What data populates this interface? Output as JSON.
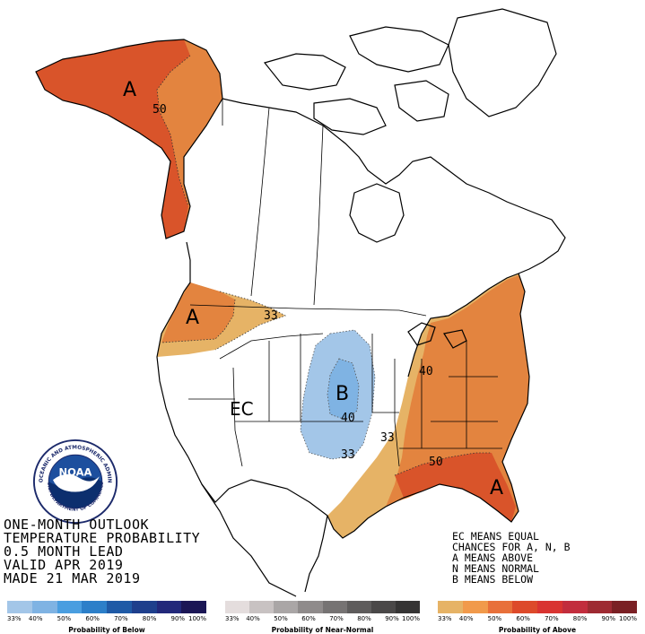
{
  "title_lines": [
    "ONE-MONTH OUTLOOK",
    "TEMPERATURE PROBABILITY",
    "0.5 MONTH LEAD",
    "VALID APR 2019",
    "MADE 21 MAR 2019"
  ],
  "key_lines": [
    "EC MEANS EQUAL",
    "CHANCES FOR A, N, B",
    "A MEANS ABOVE",
    "N MEANS NORMAL",
    "B MEANS BELOW"
  ],
  "map_labels": {
    "alaska_letter": "A",
    "alaska_contour": "50",
    "northwest_letter": "A",
    "northwest_contour": "33",
    "plains_letter": "B",
    "plains_contour_40": "40",
    "plains_contour_33": "33",
    "ec_label": "EC",
    "great_lakes_contour": "40",
    "central_contour_33": "33",
    "southeast_contour": "50",
    "florida_letter": "A"
  },
  "logo": {
    "text": "NOAA",
    "ring_text": "NATIONAL OCEANIC AND ATMOSPHERIC ADMINISTRATION",
    "ring_text_bottom": "U.S. DEPARTMENT OF COMMERCE"
  },
  "legend": {
    "below": {
      "caption": "Probability of Below",
      "ticks": [
        "33%",
        "40%",
        "50%",
        "60%",
        "70%",
        "80%",
        "90%",
        "100%"
      ],
      "colors": [
        "#a3c6e8",
        "#7fb3e3",
        "#4a9ee0",
        "#2c7fc9",
        "#1f5aa6",
        "#1e3f8c",
        "#22287a",
        "#1b1655"
      ]
    },
    "normal": {
      "caption": "Probability of Near-Normal",
      "ticks": [
        "33%",
        "40%",
        "50%",
        "60%",
        "70%",
        "80%",
        "90%",
        "100%"
      ],
      "colors": [
        "#e4dddd",
        "#c8c2c2",
        "#aaa6a6",
        "#8f8b8b",
        "#767373",
        "#5e5c5c",
        "#4a4848",
        "#353434"
      ]
    },
    "above": {
      "caption": "Probability of Above",
      "ticks": [
        "33%",
        "40%",
        "50%",
        "60%",
        "70%",
        "80%",
        "90%",
        "100%"
      ],
      "colors": [
        "#e6b366",
        "#f19a4b",
        "#e8703a",
        "#dd4a2a",
        "#d93431",
        "#c22d3d",
        "#9e2a32",
        "#7a2024"
      ]
    }
  },
  "colors": {
    "above_33": "#e6b366",
    "above_40": "#e3843f",
    "above_50": "#d9542a",
    "below_33": "#a3c6e8",
    "below_40": "#7fb3e3"
  }
}
